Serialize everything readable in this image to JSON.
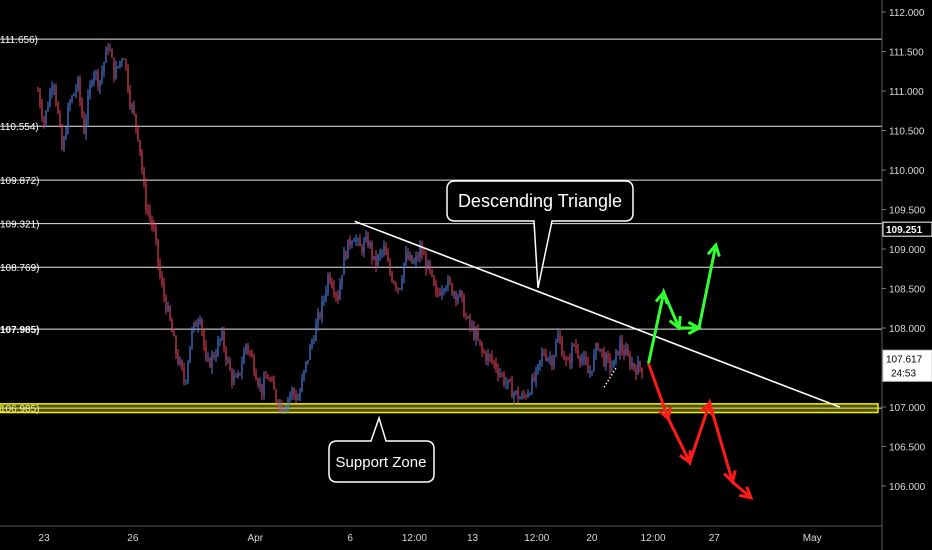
{
  "chart_data": {
    "type": "line",
    "title": "",
    "ylim": [
      105.65,
      112.05
    ],
    "grid": false,
    "y_ticks": [
      "112.000",
      "111.500",
      "111.000",
      "110.500",
      "110.000",
      "109.500",
      "109.000",
      "108.500",
      "108.000",
      "107.000",
      "106.500",
      "106.000"
    ],
    "x_ticks": [
      {
        "label": "23",
        "t": 0.2
      },
      {
        "label": "26",
        "t": 3.1
      },
      {
        "label": "Apr",
        "t": 7.1
      },
      {
        "label": "6",
        "t": 10.2
      },
      {
        "label": "12:00",
        "t": 12.3
      },
      {
        "label": "13",
        "t": 14.2
      },
      {
        "label": "12:00",
        "t": 16.3
      },
      {
        "label": "20",
        "t": 18.1
      },
      {
        "label": "12:00",
        "t": 20.1
      },
      {
        "label": "27",
        "t": 22.1
      },
      {
        "label": "May",
        "t": 25.3
      }
    ],
    "levels": [
      111.656,
      110.554,
      109.872,
      109.321,
      108.769,
      107.985,
      106.985
    ],
    "level_labels": [
      "111.656)",
      "110.554)",
      "109.872)",
      "109.321)",
      "108.769)",
      "107.985)",
      "106.985)"
    ],
    "price_badge": {
      "value": "107.617",
      "timer": "24:53",
      "price": 107.617
    },
    "resistance_badge": {
      "value": "109.251",
      "price": 109.251
    },
    "support_zone": {
      "label": "Support Zone",
      "top": 107.04,
      "bottom": 106.93,
      "color": "#f2f200"
    },
    "triangle_line": {
      "label": "Descending Triangle",
      "x": [
        10.35,
        26.2
      ],
      "y": [
        109.35,
        107.0
      ]
    },
    "price_path": {
      "x": [
        0,
        0.2,
        0.5,
        0.8,
        1.0,
        1.3,
        1.5,
        1.8,
        2.0,
        2.3,
        2.5,
        2.8,
        3.0,
        3.3,
        3.5,
        3.8,
        4.0,
        4.3,
        4.5,
        4.8,
        5.0,
        5.3,
        5.5,
        5.8,
        6.0,
        6.3,
        6.5,
        6.8,
        7.0,
        7.3,
        7.5,
        7.8,
        8.0,
        8.3,
        8.5,
        8.8,
        9.0,
        9.3,
        9.5,
        9.8,
        10.0,
        10.3,
        10.5,
        10.8,
        11.0,
        11.3,
        11.5,
        11.8,
        12.0,
        12.3,
        12.5,
        12.8,
        13.0,
        13.3,
        13.5,
        13.8,
        14.0,
        14.3,
        14.5,
        14.8,
        15.0,
        15.3,
        15.5,
        15.8,
        16.0,
        16.3,
        16.5,
        16.8,
        17.0,
        17.3,
        17.5,
        17.8,
        18.0,
        18.3,
        18.5,
        18.8,
        19.0,
        19.3,
        19.5,
        19.8
      ],
      "y": [
        111.0,
        110.6,
        111.2,
        110.2,
        110.8,
        111.1,
        110.5,
        111.3,
        111.1,
        111.6,
        111.2,
        111.5,
        110.9,
        110.4,
        109.6,
        109.2,
        108.6,
        108.1,
        107.7,
        107.3,
        107.9,
        108.2,
        107.5,
        107.7,
        107.9,
        107.4,
        107.3,
        107.8,
        107.6,
        107.2,
        107.4,
        107.1,
        107.0,
        107.2,
        107.1,
        107.6,
        107.9,
        108.3,
        108.7,
        108.4,
        108.9,
        109.2,
        109.0,
        109.1,
        108.8,
        109.0,
        108.7,
        108.5,
        108.9,
        108.8,
        109.0,
        108.7,
        108.4,
        108.6,
        108.5,
        108.4,
        108.1,
        107.9,
        107.7,
        107.6,
        107.5,
        107.3,
        107.2,
        107.1,
        107.2,
        107.4,
        107.7,
        107.6,
        107.9,
        107.5,
        107.8,
        107.6,
        107.4,
        107.8,
        107.6,
        107.5,
        107.8,
        107.6,
        107.5,
        107.5
      ]
    },
    "bullish_path": {
      "x": [
        19.95,
        20.45,
        20.95,
        21.6,
        22.15
      ],
      "y": [
        107.55,
        108.45,
        108.0,
        108.0,
        109.05
      ],
      "color": "#33ff33"
    },
    "bearish_path": {
      "x": [
        19.95,
        20.6,
        21.3,
        21.95,
        22.7,
        23.3
      ],
      "y": [
        107.55,
        106.85,
        106.3,
        107.05,
        106.05,
        105.85
      ],
      "color": "#ff1a1a"
    }
  }
}
